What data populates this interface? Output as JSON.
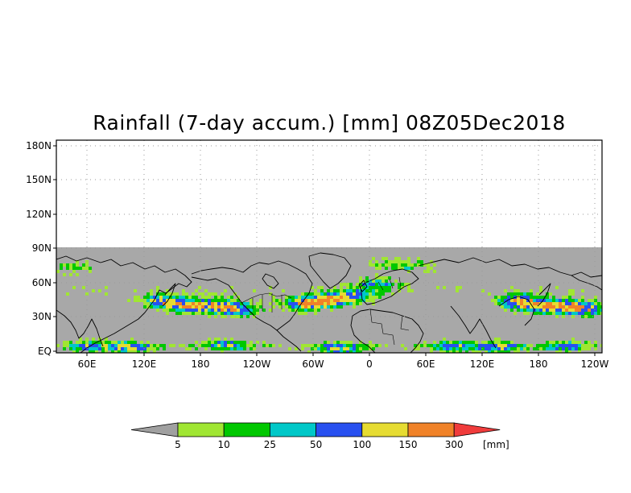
{
  "title": "Rainfall (7-day accum.) [mm] 08Z05Dec2018",
  "map": {
    "lat_labels": [
      "180N",
      "150N",
      "120N",
      "90N",
      "60N",
      "30N",
      "EQ"
    ],
    "lon_labels": [
      "60E",
      "120E",
      "180",
      "120W",
      "60W",
      "0",
      "60E",
      "120E",
      "180",
      "120W"
    ],
    "colors": {
      "no_data": "#ffffff",
      "land_gray": "#a8a8a8",
      "coast": "#000000",
      "grid": "#9a9a9a"
    }
  },
  "colorbar": {
    "thresholds": [
      "5",
      "10",
      "25",
      "50",
      "100",
      "150",
      "300"
    ],
    "unit": "[mm]",
    "colors": [
      "#a0a0a0",
      "#a0e632",
      "#00c800",
      "#00c8c8",
      "#2850f0",
      "#e6dc32",
      "#f08228",
      "#f03c3c"
    ]
  }
}
